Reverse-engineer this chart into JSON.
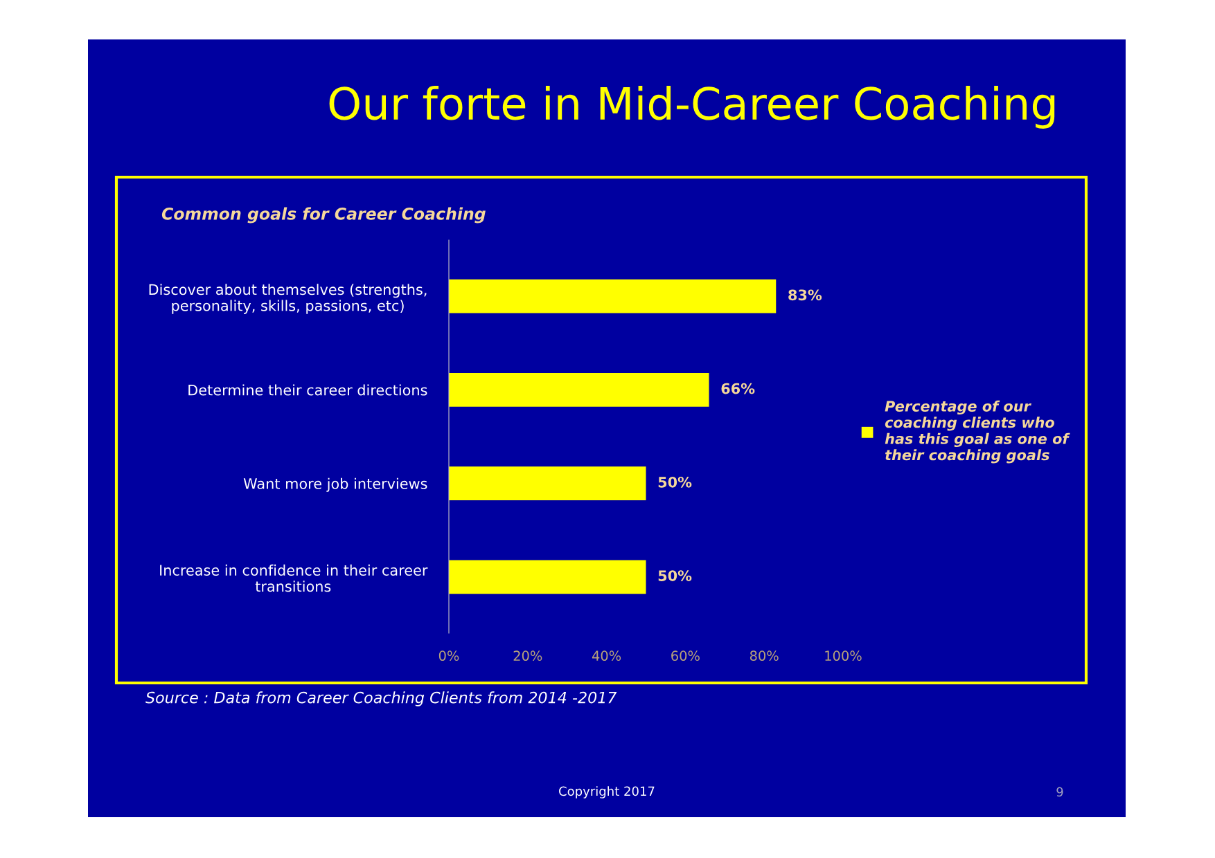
{
  "chart_data": {
    "type": "bar",
    "orientation": "horizontal",
    "title": "Our forte in Mid-Career Coaching",
    "subtitle": "Common goals for Career Coaching",
    "categories": [
      "Discover about themselves (strengths,\npersonality, skills, passions, etc)",
      "Determine their career directions",
      "Want more job interviews",
      "Increase in confidence in their career\ntransitions"
    ],
    "series": [
      {
        "name": "Percentage of our\ncoaching clients who\nhas this goal as one of\ntheir coaching goals",
        "color": "#ffff00",
        "values": [
          83,
          66,
          50,
          50
        ],
        "value_labels": [
          "83%",
          "66%",
          "50%",
          "50%"
        ]
      }
    ],
    "xlim": [
      0,
      100
    ],
    "xticks": [
      {
        "value": 0,
        "label": "0%"
      },
      {
        "value": 20,
        "label": "20%"
      },
      {
        "value": 40,
        "label": "40%"
      },
      {
        "value": 60,
        "label": "60%"
      },
      {
        "value": 80,
        "label": "80%"
      },
      {
        "value": 100,
        "label": "100%"
      }
    ],
    "grid": false,
    "legend": "right",
    "annotations": [
      "Source : Data from Career Coaching Clients from 2014 -2017",
      "Copyright 2017",
      "9"
    ]
  }
}
